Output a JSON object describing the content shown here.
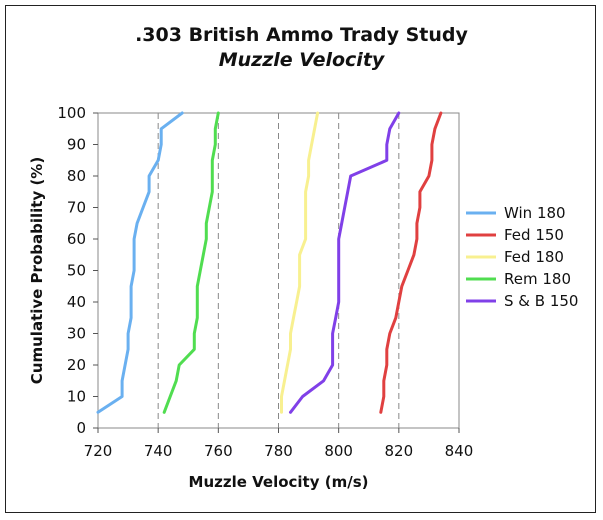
{
  "chart_data": {
    "type": "line",
    "title": ".303 British Ammo Trady Study",
    "subtitle": "Muzzle Velocity",
    "xlabel": "Muzzle Velocity (m/s)",
    "ylabel": "Cumulative Probability (%)",
    "xlim": [
      720,
      840
    ],
    "ylim": [
      0,
      100
    ],
    "xticks": [
      720,
      740,
      760,
      780,
      800,
      820,
      840
    ],
    "yticks": [
      0,
      10,
      20,
      30,
      40,
      50,
      60,
      70,
      80,
      90,
      100
    ],
    "grid": "vertical dashed",
    "legend": "right",
    "series": [
      {
        "name": "Win 180",
        "color": "#6ab0f0",
        "points": [
          [
            720,
            5
          ],
          [
            728,
            10
          ],
          [
            728,
            15
          ],
          [
            729,
            20
          ],
          [
            730,
            25
          ],
          [
            730,
            30
          ],
          [
            731,
            35
          ],
          [
            731,
            40
          ],
          [
            731,
            45
          ],
          [
            732,
            50
          ],
          [
            732,
            55
          ],
          [
            732,
            60
          ],
          [
            733,
            65
          ],
          [
            735,
            70
          ],
          [
            737,
            75
          ],
          [
            737,
            80
          ],
          [
            740,
            85
          ],
          [
            741,
            90
          ],
          [
            741,
            95
          ],
          [
            748,
            100
          ]
        ]
      },
      {
        "name": "Fed 150",
        "color": "#e04040",
        "points": [
          [
            814,
            5
          ],
          [
            815,
            10
          ],
          [
            815,
            15
          ],
          [
            816,
            20
          ],
          [
            816,
            25
          ],
          [
            817,
            30
          ],
          [
            819,
            35
          ],
          [
            820,
            40
          ],
          [
            821,
            45
          ],
          [
            823,
            50
          ],
          [
            825,
            55
          ],
          [
            826,
            60
          ],
          [
            826,
            65
          ],
          [
            827,
            70
          ],
          [
            827,
            75
          ],
          [
            830,
            80
          ],
          [
            831,
            85
          ],
          [
            831,
            90
          ],
          [
            832,
            95
          ],
          [
            834,
            100
          ]
        ]
      },
      {
        "name": "Fed 180",
        "color": "#f8f090",
        "points": [
          [
            781,
            5
          ],
          [
            781,
            10
          ],
          [
            782,
            15
          ],
          [
            783,
            20
          ],
          [
            784,
            25
          ],
          [
            784,
            30
          ],
          [
            785,
            35
          ],
          [
            786,
            40
          ],
          [
            787,
            45
          ],
          [
            787,
            50
          ],
          [
            787,
            55
          ],
          [
            789,
            60
          ],
          [
            789,
            65
          ],
          [
            789,
            70
          ],
          [
            789,
            75
          ],
          [
            790,
            80
          ],
          [
            790,
            85
          ],
          [
            791,
            90
          ],
          [
            792,
            95
          ],
          [
            793,
            100
          ]
        ]
      },
      {
        "name": "Rem 180",
        "color": "#50dd50",
        "points": [
          [
            742,
            5
          ],
          [
            744,
            10
          ],
          [
            746,
            15
          ],
          [
            747,
            20
          ],
          [
            752,
            25
          ],
          [
            752,
            30
          ],
          [
            753,
            35
          ],
          [
            753,
            40
          ],
          [
            753,
            45
          ],
          [
            754,
            50
          ],
          [
            755,
            55
          ],
          [
            756,
            60
          ],
          [
            756,
            65
          ],
          [
            757,
            70
          ],
          [
            758,
            75
          ],
          [
            758,
            80
          ],
          [
            758,
            85
          ],
          [
            759,
            90
          ],
          [
            759,
            95
          ],
          [
            760,
            100
          ]
        ]
      },
      {
        "name": "S & B 150",
        "color": "#8040e8",
        "points": [
          [
            784,
            5
          ],
          [
            788,
            10
          ],
          [
            795,
            15
          ],
          [
            798,
            20
          ],
          [
            798,
            25
          ],
          [
            798,
            30
          ],
          [
            799,
            35
          ],
          [
            800,
            40
          ],
          [
            800,
            45
          ],
          [
            800,
            50
          ],
          [
            800,
            55
          ],
          [
            800,
            60
          ],
          [
            801,
            65
          ],
          [
            802,
            70
          ],
          [
            803,
            75
          ],
          [
            804,
            80
          ],
          [
            816,
            85
          ],
          [
            816,
            90
          ],
          [
            817,
            95
          ],
          [
            820,
            100
          ]
        ]
      }
    ]
  }
}
